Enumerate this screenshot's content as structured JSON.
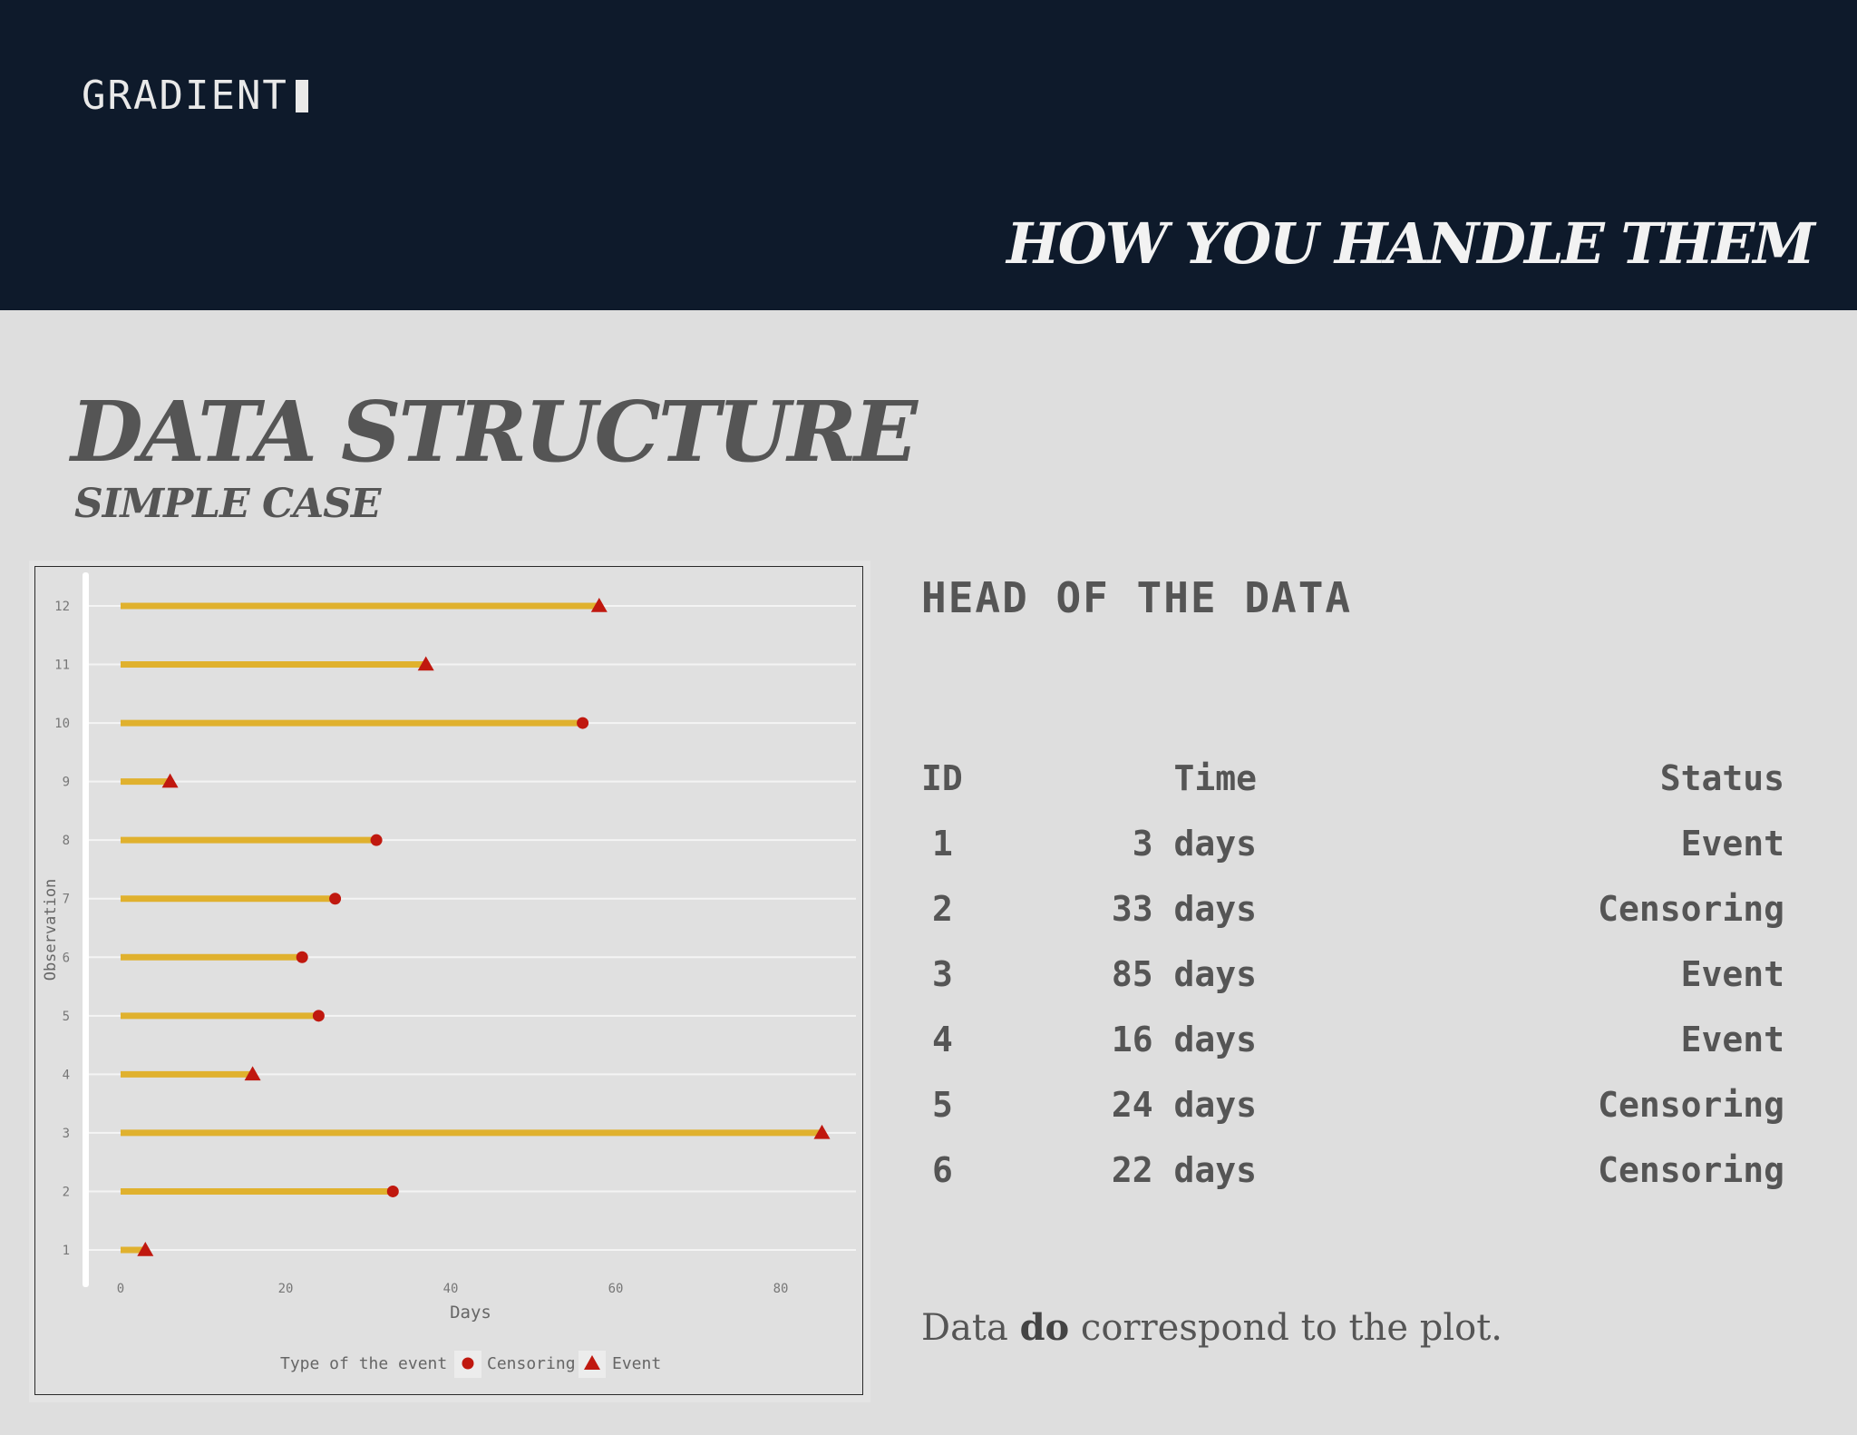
{
  "header": {
    "logo_text": "GRADIENT",
    "title": "HOW YOU HANDLE THEM"
  },
  "slide": {
    "title": "DATA STRUCTURE",
    "subtitle": "SIMPLE CASE"
  },
  "table": {
    "title": "HEAD OF THE DATA",
    "columns": [
      "ID",
      "Time",
      "Status"
    ],
    "rows": [
      {
        "id": "1",
        "time": "3 days",
        "status": "Event"
      },
      {
        "id": "2",
        "time": "33 days",
        "status": "Censoring"
      },
      {
        "id": "3",
        "time": "85 days",
        "status": "Event"
      },
      {
        "id": "4",
        "time": "16 days",
        "status": "Event"
      },
      {
        "id": "5",
        "time": "24 days",
        "status": "Censoring"
      },
      {
        "id": "6",
        "time": "22 days",
        "status": "Censoring"
      }
    ]
  },
  "note": {
    "before": "Data ",
    "bold": "do",
    "after": " correspond to the plot."
  },
  "colors": {
    "header_bg": "#0e1a2b",
    "bar": "#e0b12e",
    "marker": "#c0180f"
  },
  "chart_data": {
    "type": "bar",
    "orientation": "horizontal",
    "xlabel": "Days",
    "ylabel": "Observation",
    "xlim": [
      -4,
      89
    ],
    "xticks": [
      0,
      20,
      40,
      60,
      80
    ],
    "legend_title": "Type of the event",
    "legend": [
      "Censoring",
      "Event"
    ],
    "legend_position": "bottom",
    "grid": true,
    "observations": [
      {
        "id": 1,
        "time": 3,
        "status": "Event"
      },
      {
        "id": 2,
        "time": 33,
        "status": "Censoring"
      },
      {
        "id": 3,
        "time": 85,
        "status": "Event"
      },
      {
        "id": 4,
        "time": 16,
        "status": "Event"
      },
      {
        "id": 5,
        "time": 24,
        "status": "Censoring"
      },
      {
        "id": 6,
        "time": 22,
        "status": "Censoring"
      },
      {
        "id": 7,
        "time": 26,
        "status": "Censoring"
      },
      {
        "id": 8,
        "time": 31,
        "status": "Censoring"
      },
      {
        "id": 9,
        "time": 6,
        "status": "Event"
      },
      {
        "id": 10,
        "time": 56,
        "status": "Censoring"
      },
      {
        "id": 11,
        "time": 37,
        "status": "Event"
      },
      {
        "id": 12,
        "time": 58,
        "status": "Event"
      }
    ]
  }
}
